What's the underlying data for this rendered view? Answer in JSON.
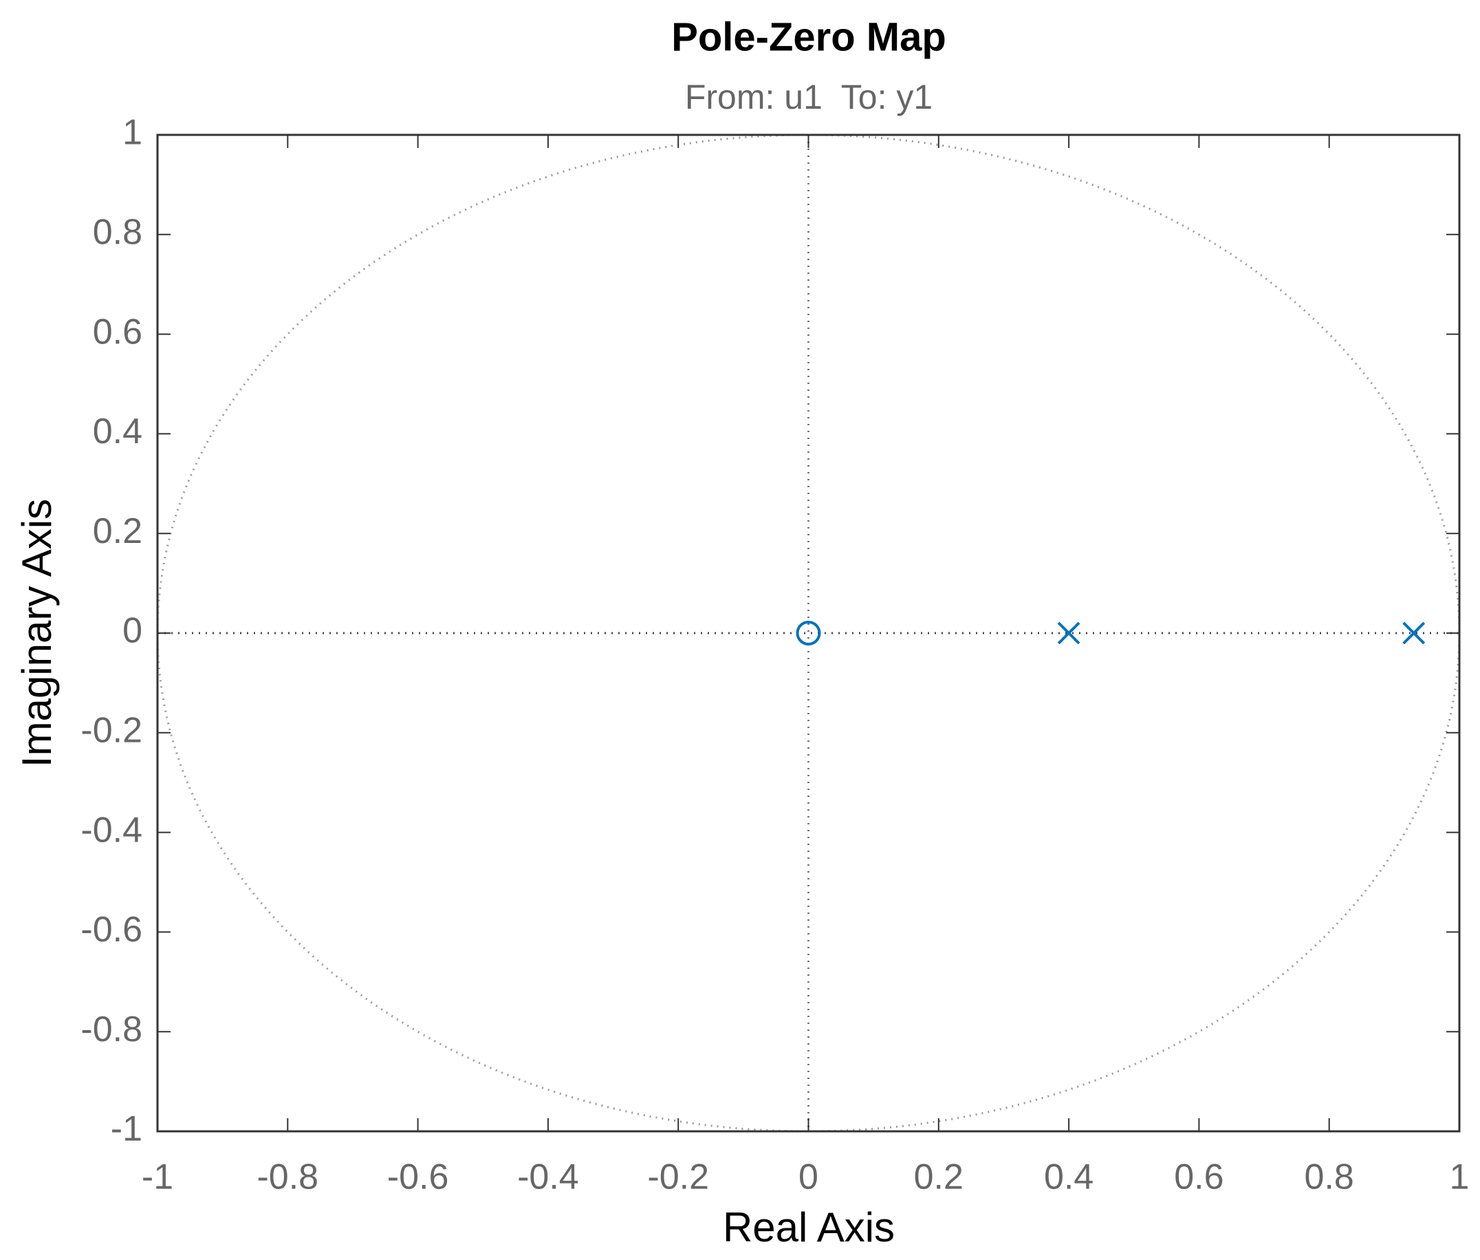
{
  "chart_data": {
    "type": "scatter",
    "title": "Pole-Zero Map",
    "subtitle": "From: u1  To: y1",
    "xlabel": "Real Axis",
    "ylabel": "Imaginary Axis",
    "zeros": {
      "x": [
        0
      ],
      "y": [
        0
      ]
    },
    "poles": {
      "x": [
        0.4,
        0.93
      ],
      "y": [
        0,
        0
      ]
    },
    "color": "#0072bd",
    "xlim": [
      -1,
      1
    ],
    "ylim": [
      -1,
      1
    ],
    "xticks": [
      -1,
      -0.8,
      -0.6,
      -0.4,
      -0.2,
      0,
      0.2,
      0.4,
      0.6,
      0.8,
      1
    ],
    "yticks": [
      -1,
      -0.8,
      -0.6,
      -0.4,
      -0.2,
      0,
      0.2,
      0.4,
      0.6,
      0.8,
      1
    ],
    "unit_circle": true,
    "zero_lines": true
  }
}
